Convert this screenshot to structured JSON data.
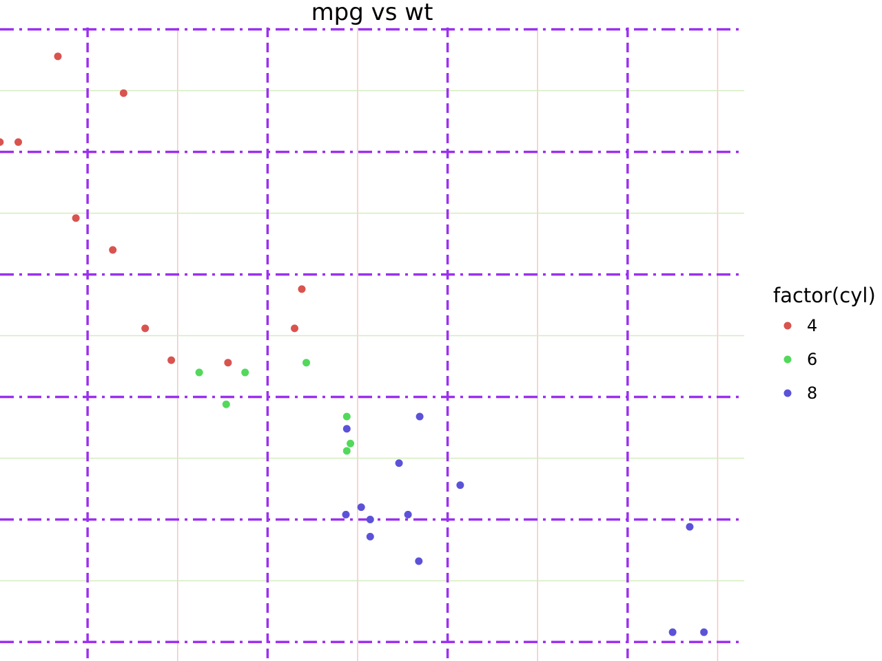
{
  "chart_data": {
    "type": "scatter",
    "title": "mpg vs wt",
    "xlabel": "",
    "ylabel": "",
    "xlim": [
      1.5135,
      5.6475
    ],
    "ylim": [
      9.225,
      35.075
    ],
    "x_major_ticks": [
      2,
      3,
      4,
      5
    ],
    "x_minor_ticks": [
      1.5,
      2.5,
      3.5,
      4.5,
      5.5
    ],
    "y_major_ticks": [
      10,
      15,
      20,
      25,
      30,
      35
    ],
    "y_minor_ticks": [
      12.5,
      17.5,
      22.5,
      27.5,
      32.5
    ],
    "grid": true,
    "major_grid_color": "#9b30ef",
    "minor_grid_x_color": "#f7c4c4",
    "minor_grid_y_color": "#d4edbd",
    "legend": {
      "title": "factor(cyl)",
      "position": "right"
    },
    "series": [
      {
        "name": "4",
        "color": "#d9534f",
        "points": [
          {
            "x": 2.32,
            "y": 22.8
          },
          {
            "x": 3.19,
            "y": 24.4
          },
          {
            "x": 3.15,
            "y": 22.8
          },
          {
            "x": 2.2,
            "y": 32.4
          },
          {
            "x": 1.615,
            "y": 30.4
          },
          {
            "x": 1.835,
            "y": 33.9
          },
          {
            "x": 2.465,
            "y": 21.5
          },
          {
            "x": 1.935,
            "y": 27.3
          },
          {
            "x": 2.14,
            "y": 26.0
          },
          {
            "x": 1.513,
            "y": 30.4
          },
          {
            "x": 2.78,
            "y": 21.4
          }
        ]
      },
      {
        "name": "6",
        "color": "#52d95b",
        "points": [
          {
            "x": 2.62,
            "y": 21.0
          },
          {
            "x": 2.875,
            "y": 21.0
          },
          {
            "x": 3.215,
            "y": 21.4
          },
          {
            "x": 3.46,
            "y": 18.1
          },
          {
            "x": 3.44,
            "y": 19.2
          },
          {
            "x": 3.44,
            "y": 17.8
          },
          {
            "x": 2.77,
            "y": 19.7
          }
        ]
      },
      {
        "name": "8",
        "color": "#5b52d9",
        "points": [
          {
            "x": 3.44,
            "y": 18.7
          },
          {
            "x": 3.57,
            "y": 14.3
          },
          {
            "x": 4.07,
            "y": 16.4
          },
          {
            "x": 3.73,
            "y": 17.3
          },
          {
            "x": 3.78,
            "y": 15.2
          },
          {
            "x": 5.25,
            "y": 10.4
          },
          {
            "x": 5.424,
            "y": 10.4
          },
          {
            "x": 5.345,
            "y": 14.7
          },
          {
            "x": 3.52,
            "y": 15.5
          },
          {
            "x": 3.435,
            "y": 15.2
          },
          {
            "x": 3.84,
            "y": 13.3
          },
          {
            "x": 3.845,
            "y": 19.2
          },
          {
            "x": 3.57,
            "y": 15.0
          }
        ]
      }
    ]
  }
}
